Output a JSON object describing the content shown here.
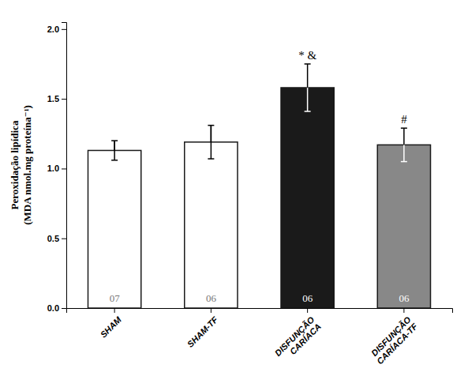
{
  "chart_data": {
    "type": "bar",
    "categories": [
      "SHAM",
      "SHAM-TF",
      "DISFUNÇÃO\nCARÍACA",
      "DISFUNÇÃO\nCARÍACA-TF"
    ],
    "values": [
      1.13,
      1.19,
      1.58,
      1.17
    ],
    "errors": [
      0.07,
      0.12,
      0.17,
      0.12
    ],
    "n_labels": [
      "07",
      "06",
      "06",
      "06"
    ],
    "annotations": [
      null,
      null,
      "* &",
      "#"
    ],
    "colors": [
      "#ffffff",
      "#ffffff",
      "#1a1a1a",
      "#888888"
    ],
    "ylabel": "Peroxidação lipídica\n(MDA nmol.mg proteína⁻¹)",
    "ylim": [
      0.0,
      2.05
    ],
    "yticks": [
      {
        "value": 0.0,
        "label": "0.0"
      },
      0.5,
      {
        "value": 1.0,
        "label": "1.0"
      },
      1.5,
      {
        "value": 2.0,
        "label": "2.0"
      }
    ],
    "grid": false
  }
}
